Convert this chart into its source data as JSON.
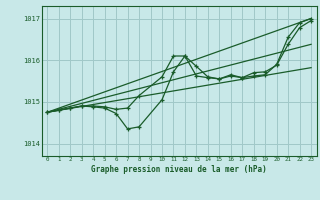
{
  "title": "Graphe pression niveau de la mer (hPa)",
  "background_color": "#c8e8e8",
  "grid_color": "#a0c8c8",
  "line_color": "#1a5c2a",
  "xlim": [
    -0.5,
    23.5
  ],
  "ylim": [
    1013.7,
    1017.3
  ],
  "yticks": [
    1014,
    1015,
    1016,
    1017
  ],
  "xticks": [
    0,
    1,
    2,
    3,
    4,
    5,
    6,
    7,
    8,
    9,
    10,
    11,
    12,
    13,
    14,
    15,
    16,
    17,
    18,
    19,
    20,
    21,
    22,
    23
  ],
  "series": [
    {
      "x": [
        0,
        1,
        2,
        3,
        4,
        5,
        6,
        7,
        8,
        10,
        11,
        12,
        13,
        14,
        15,
        16,
        17,
        18,
        19,
        20,
        21,
        22,
        23
      ],
      "y": [
        1014.75,
        1014.8,
        1014.85,
        1014.9,
        1014.9,
        1014.88,
        1014.82,
        1014.85,
        1015.15,
        1015.6,
        1016.1,
        1016.1,
        1015.85,
        1015.6,
        1015.55,
        1015.65,
        1015.58,
        1015.62,
        1015.65,
        1015.9,
        1016.55,
        1016.9,
        1017.0
      ]
    },
    {
      "x": [
        0,
        1,
        2,
        3,
        4,
        5,
        6,
        7,
        8,
        10,
        11,
        12,
        13,
        14,
        15,
        16,
        17,
        18,
        19,
        20,
        21,
        22,
        23
      ],
      "y": [
        1014.75,
        1014.8,
        1014.85,
        1014.9,
        1014.88,
        1014.85,
        1014.72,
        1014.35,
        1014.4,
        1015.05,
        1015.72,
        1016.1,
        1015.62,
        1015.58,
        1015.55,
        1015.62,
        1015.58,
        1015.7,
        1015.72,
        1015.88,
        1016.38,
        1016.78,
        1016.95
      ]
    },
    {
      "x": [
        0,
        23
      ],
      "y": [
        1014.75,
        1017.0
      ]
    },
    {
      "x": [
        0,
        23
      ],
      "y": [
        1014.75,
        1015.82
      ]
    },
    {
      "x": [
        0,
        23
      ],
      "y": [
        1014.75,
        1016.38
      ]
    }
  ],
  "marker_series": [
    0,
    1
  ]
}
